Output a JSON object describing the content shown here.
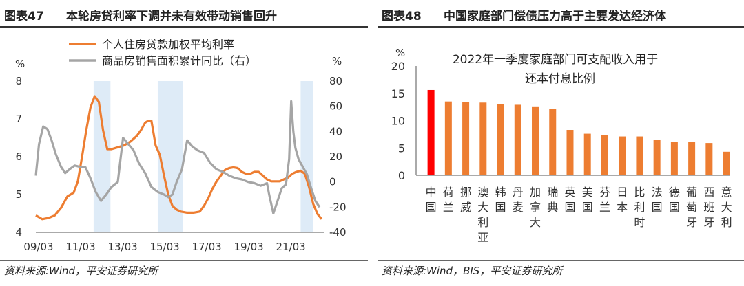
{
  "left": {
    "fig_no": "图表47",
    "title": "本轮房贷利率下调并未有效带动销售回升",
    "source": "资料来源:Wind，平安证券研究所",
    "colors": {
      "rate": "#ED7D31",
      "sales": "#A5A5A5",
      "shade": "#DEEBF7"
    },
    "chart_data": {
      "type": "line",
      "left_unit": "%",
      "right_unit": "%",
      "left_ylim": [
        4,
        8
      ],
      "left_ticks": [
        "4",
        "5",
        "6",
        "7",
        "8"
      ],
      "right_ylim": [
        -40,
        80
      ],
      "right_ticks": [
        "-40",
        "-20",
        "0",
        "20",
        "40",
        "60",
        "80"
      ],
      "x_ticks": [
        "09/03",
        "11/03",
        "13/03",
        "15/03",
        "17/03",
        "19/03",
        "21/03"
      ],
      "x_range": [
        2009.0,
        2022.7
      ],
      "shaded_periods": [
        [
          2011.75,
          2012.55
        ],
        [
          2014.8,
          2016.0
        ],
        [
          2021.6,
          2022.2
        ]
      ],
      "series": [
        {
          "name": "个人住房贷款加权平均利率",
          "axis": "left",
          "x": [
            2009.0,
            2009.3,
            2009.6,
            2009.9,
            2010.2,
            2010.5,
            2010.8,
            2011.0,
            2011.2,
            2011.4,
            2011.6,
            2011.8,
            2012.0,
            2012.2,
            2012.4,
            2012.6,
            2012.9,
            2013.2,
            2013.5,
            2013.8,
            2014.0,
            2014.2,
            2014.35,
            2014.5,
            2014.7,
            2014.9,
            2015.1,
            2015.3,
            2015.5,
            2015.7,
            2015.9,
            2016.2,
            2016.5,
            2016.8,
            2017.0,
            2017.2,
            2017.4,
            2017.6,
            2017.8,
            2018.0,
            2018.2,
            2018.4,
            2018.6,
            2018.8,
            2019.0,
            2019.2,
            2019.4,
            2019.6,
            2019.8,
            2020.0,
            2020.2,
            2020.4,
            2020.6,
            2020.8,
            2021.0,
            2021.2,
            2021.4,
            2021.6,
            2021.8,
            2022.0,
            2022.2,
            2022.4,
            2022.6
          ],
          "values": [
            4.45,
            4.35,
            4.38,
            4.45,
            4.65,
            4.95,
            5.05,
            5.35,
            6.0,
            6.7,
            7.3,
            7.6,
            7.45,
            6.7,
            6.2,
            6.2,
            6.25,
            6.3,
            6.4,
            6.55,
            6.7,
            6.9,
            6.95,
            6.95,
            6.3,
            6.05,
            5.5,
            5.0,
            4.7,
            4.6,
            4.55,
            4.52,
            4.52,
            4.55,
            4.7,
            4.9,
            5.15,
            5.35,
            5.5,
            5.65,
            5.7,
            5.72,
            5.7,
            5.6,
            5.55,
            5.55,
            5.6,
            5.6,
            5.5,
            5.4,
            5.35,
            5.35,
            5.35,
            5.4,
            5.45,
            5.55,
            5.6,
            5.63,
            5.55,
            5.2,
            4.75,
            4.49,
            4.35
          ]
        },
        {
          "name": "商品房销售面积累计同比（右）",
          "axis": "right",
          "x": [
            2009.0,
            2009.15,
            2009.35,
            2009.55,
            2009.75,
            2009.95,
            2010.2,
            2010.4,
            2010.6,
            2010.85,
            2011.1,
            2011.35,
            2011.6,
            2011.85,
            2012.1,
            2012.35,
            2012.6,
            2012.9,
            2013.15,
            2013.4,
            2013.65,
            2013.9,
            2014.2,
            2014.5,
            2014.8,
            2015.1,
            2015.3,
            2015.5,
            2015.7,
            2015.95,
            2016.2,
            2016.45,
            2016.7,
            2017.0,
            2017.3,
            2017.6,
            2017.9,
            2018.2,
            2018.5,
            2018.8,
            2019.1,
            2019.4,
            2019.7,
            2020.0,
            2020.1,
            2020.3,
            2020.5,
            2020.7,
            2020.9,
            2021.05,
            2021.15,
            2021.25,
            2021.35,
            2021.5,
            2021.7,
            2021.9,
            2022.1,
            2022.3,
            2022.5
          ],
          "values": [
            5,
            30,
            44,
            42,
            33,
            22,
            12,
            7,
            10,
            13,
            12,
            12,
            3,
            -8,
            -15,
            -10,
            -4,
            0,
            35,
            30,
            25,
            15,
            7,
            -4,
            -8,
            -10,
            -12,
            -10,
            0,
            10,
            33,
            28,
            25,
            23,
            15,
            10,
            8,
            5,
            3,
            2,
            0,
            -1,
            -3,
            -1,
            -10,
            -25,
            -15,
            -5,
            -2,
            18,
            64,
            40,
            27,
            18,
            12,
            6,
            -5,
            -15,
            -20
          ]
        }
      ]
    }
  },
  "right": {
    "fig_no": "图表48",
    "title": "中国家庭部门偿债压力高于主要发达经济体",
    "source": "资料来源:Wind，BIS，平安证券研究所",
    "colors": {
      "highlight": "#FF0000",
      "bar": "#ED7D31"
    },
    "chart_data": {
      "type": "bar",
      "title_line1": "2022年一季度家庭部门可支配收入用于",
      "title_line2": "还本付息比例",
      "y_unit": "%",
      "ylim": [
        0,
        20
      ],
      "y_ticks": [
        "0",
        "5",
        "10",
        "15",
        "20"
      ],
      "categories": [
        "中国",
        "荷兰",
        "挪威",
        "澳大利亚",
        "韩国",
        "丹麦",
        "加拿大",
        "瑞典",
        "英国",
        "美国",
        "芬兰",
        "日本",
        "比利时",
        "法国",
        "德国",
        "葡萄牙",
        "西班牙",
        "意大利"
      ],
      "values": [
        15.6,
        13.5,
        13.4,
        13.3,
        13.0,
        12.9,
        12.6,
        12.2,
        8.3,
        7.6,
        7.4,
        7.1,
        7.1,
        6.5,
        6.1,
        6.1,
        5.9,
        4.3
      ]
    }
  }
}
